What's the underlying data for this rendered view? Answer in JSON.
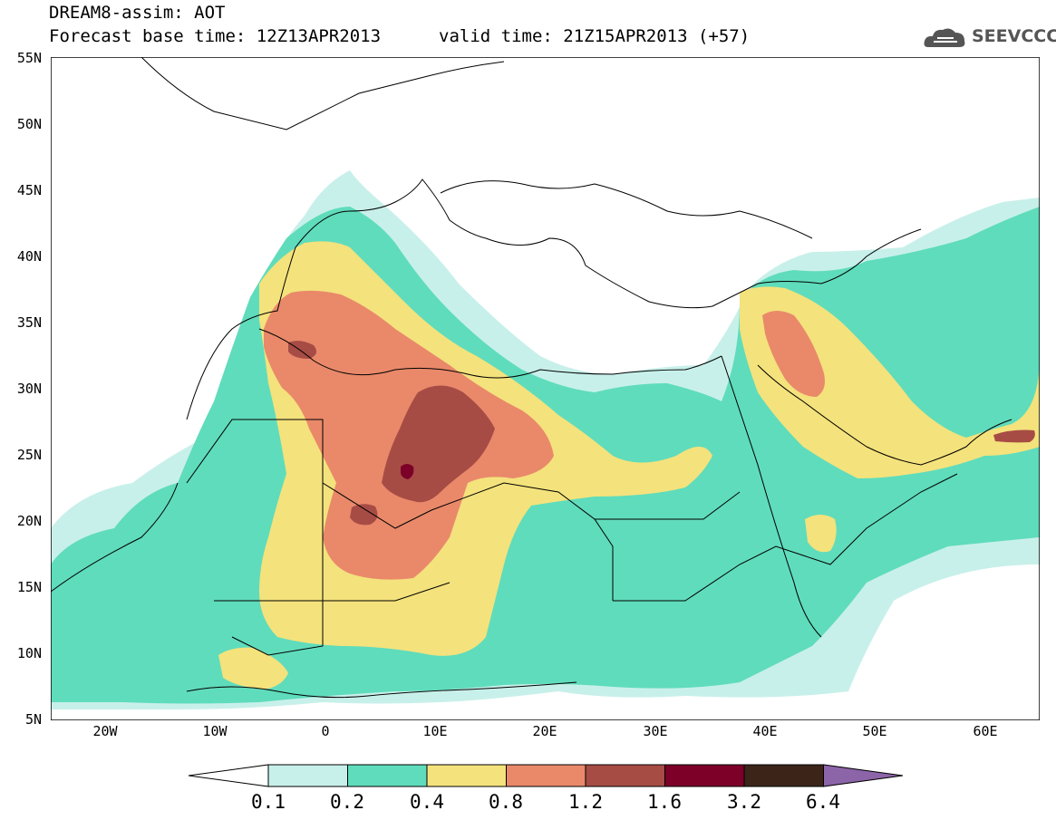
{
  "header": {
    "title_line1": "DREAM8-assim: AOT",
    "title_line2": "Forecast base time: 12Z13APR2013",
    "valid_time": "valid time: 21Z15APR2013 (+57)",
    "logo_text": "SEEVCCC"
  },
  "map": {
    "lat_labels": [
      "55N",
      "50N",
      "45N",
      "40N",
      "35N",
      "30N",
      "25N",
      "20N",
      "15N",
      "10N",
      "5N"
    ],
    "lon_labels": [
      "20W",
      "10W",
      "0",
      "10E",
      "20E",
      "30E",
      "40E",
      "50E",
      "60E"
    ],
    "colors": {
      "c01": "#c8f0ea",
      "c02": "#5fdcbc",
      "c04": "#f4e27c",
      "c08": "#e9896a",
      "c12": "#a74c45",
      "c16": "#7c0028",
      "c32": "#3c2418",
      "c64": "#8c64a8"
    }
  },
  "colorbar": {
    "labels": [
      "0.1",
      "0.2",
      "0.4",
      "0.8",
      "1.2",
      "1.6",
      "3.2",
      "6.4"
    ]
  }
}
